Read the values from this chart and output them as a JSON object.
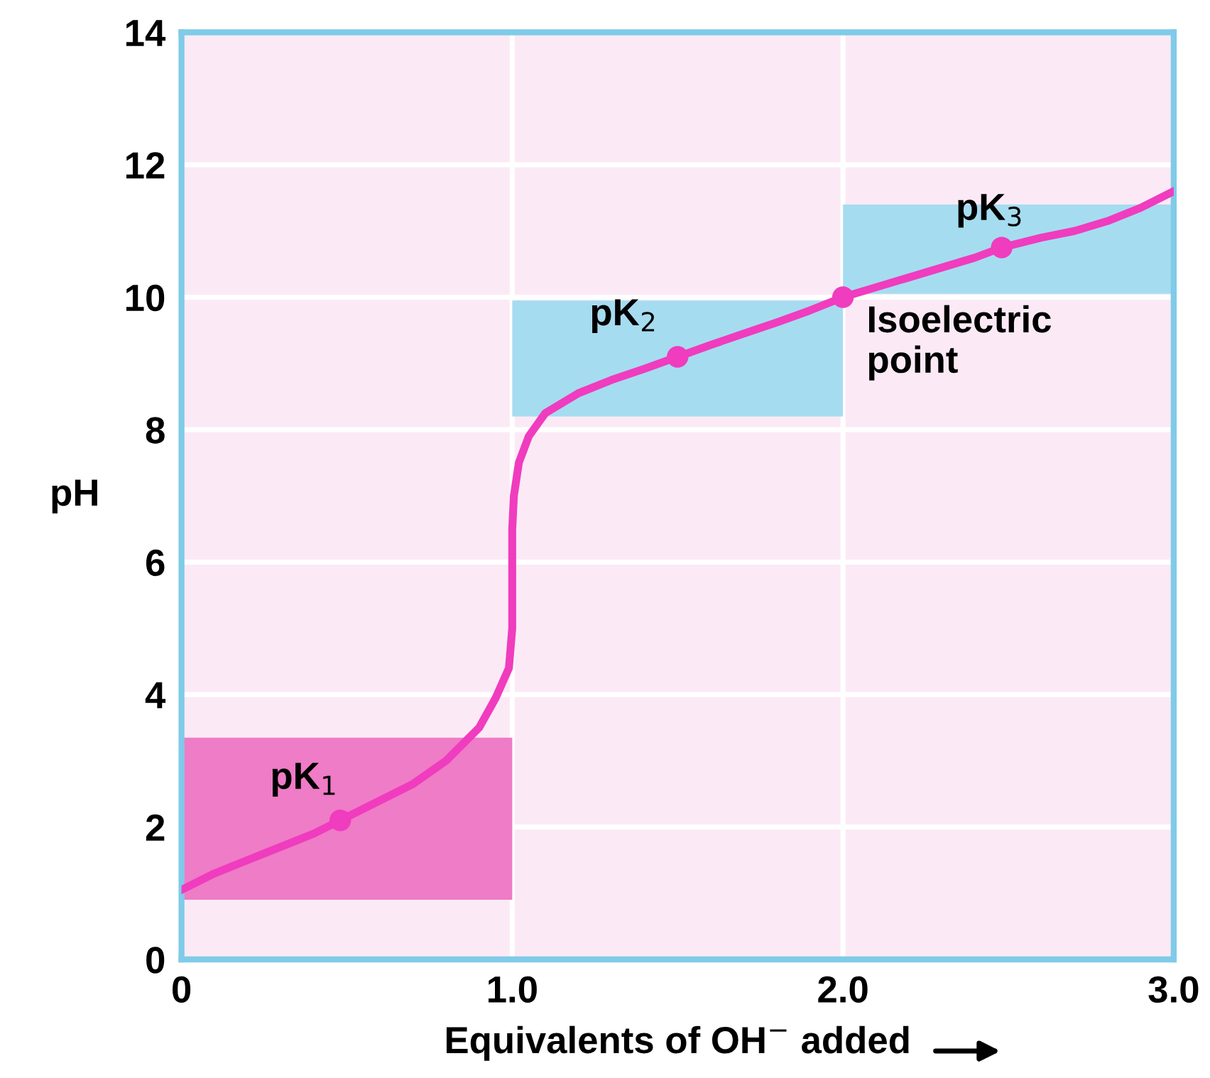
{
  "chart_data": {
    "type": "line",
    "xlabel": "Equivalents of OH$^{−}$ added",
    "ylabel": "pH",
    "xlim": [
      0,
      3
    ],
    "ylim": [
      0,
      14
    ],
    "xticks": [
      0,
      {
        "value": 1,
        "label": "1.0"
      },
      {
        "value": 2,
        "label": "2.0"
      },
      {
        "value": 3,
        "label": "3.0"
      }
    ],
    "yticks": [
      0,
      2,
      4,
      6,
      8,
      10,
      12,
      14
    ],
    "grid": true,
    "series": [
      {
        "color": "#f03cbe",
        "x": [
          0,
          0.1,
          0.2,
          0.3,
          0.4,
          0.48,
          0.6,
          0.7,
          0.8,
          0.9,
          0.95,
          0.99,
          1.0,
          1.0,
          1.005,
          1.02,
          1.05,
          1.1,
          1.2,
          1.3,
          1.4,
          1.5,
          1.6,
          1.7,
          1.8,
          1.9,
          2.0,
          2.1,
          2.2,
          2.3,
          2.4,
          2.48,
          2.6,
          2.7,
          2.8,
          2.9,
          3.0
        ],
        "values": [
          1.05,
          1.3,
          1.5,
          1.7,
          1.9,
          2.1,
          2.4,
          2.65,
          3.0,
          3.5,
          3.95,
          4.4,
          5.0,
          6.5,
          7.0,
          7.5,
          7.9,
          8.25,
          8.55,
          8.75,
          8.92,
          9.1,
          9.28,
          9.45,
          9.62,
          9.8,
          10.0,
          10.15,
          10.3,
          10.45,
          10.6,
          10.75,
          10.9,
          11.0,
          11.15,
          11.35,
          11.6
        ]
      },
      {
        "type": "scatter",
        "color": "#f03cbe",
        "x": [
          0.48,
          1.5,
          2.0,
          2.48
        ],
        "values": [
          2.1,
          9.1,
          10.0,
          10.75
        ]
      }
    ],
    "bands": [
      {
        "axis": "y",
        "from": 0.9,
        "to": 3.35,
        "color": "#ee7cc6"
      },
      {
        "axis": "y",
        "from": 8.2,
        "to": 9.95,
        "color": "#a6dcf0"
      },
      {
        "axis": "y",
        "from": 10.05,
        "to": 11.4,
        "color": "#a6dcf0"
      }
    ],
    "annotations": [
      {
        "text": "pK$_{1}$",
        "x": 0.48,
        "y": 2.1
      },
      {
        "text": "pK$_{2}$",
        "x": 1.5,
        "y": 9.1
      },
      {
        "text": "Isoelectric\npoint",
        "x": 2.0,
        "y": 10.0
      },
      {
        "text": "pK$_{3}$",
        "x": 2.48,
        "y": 10.75
      }
    ]
  }
}
